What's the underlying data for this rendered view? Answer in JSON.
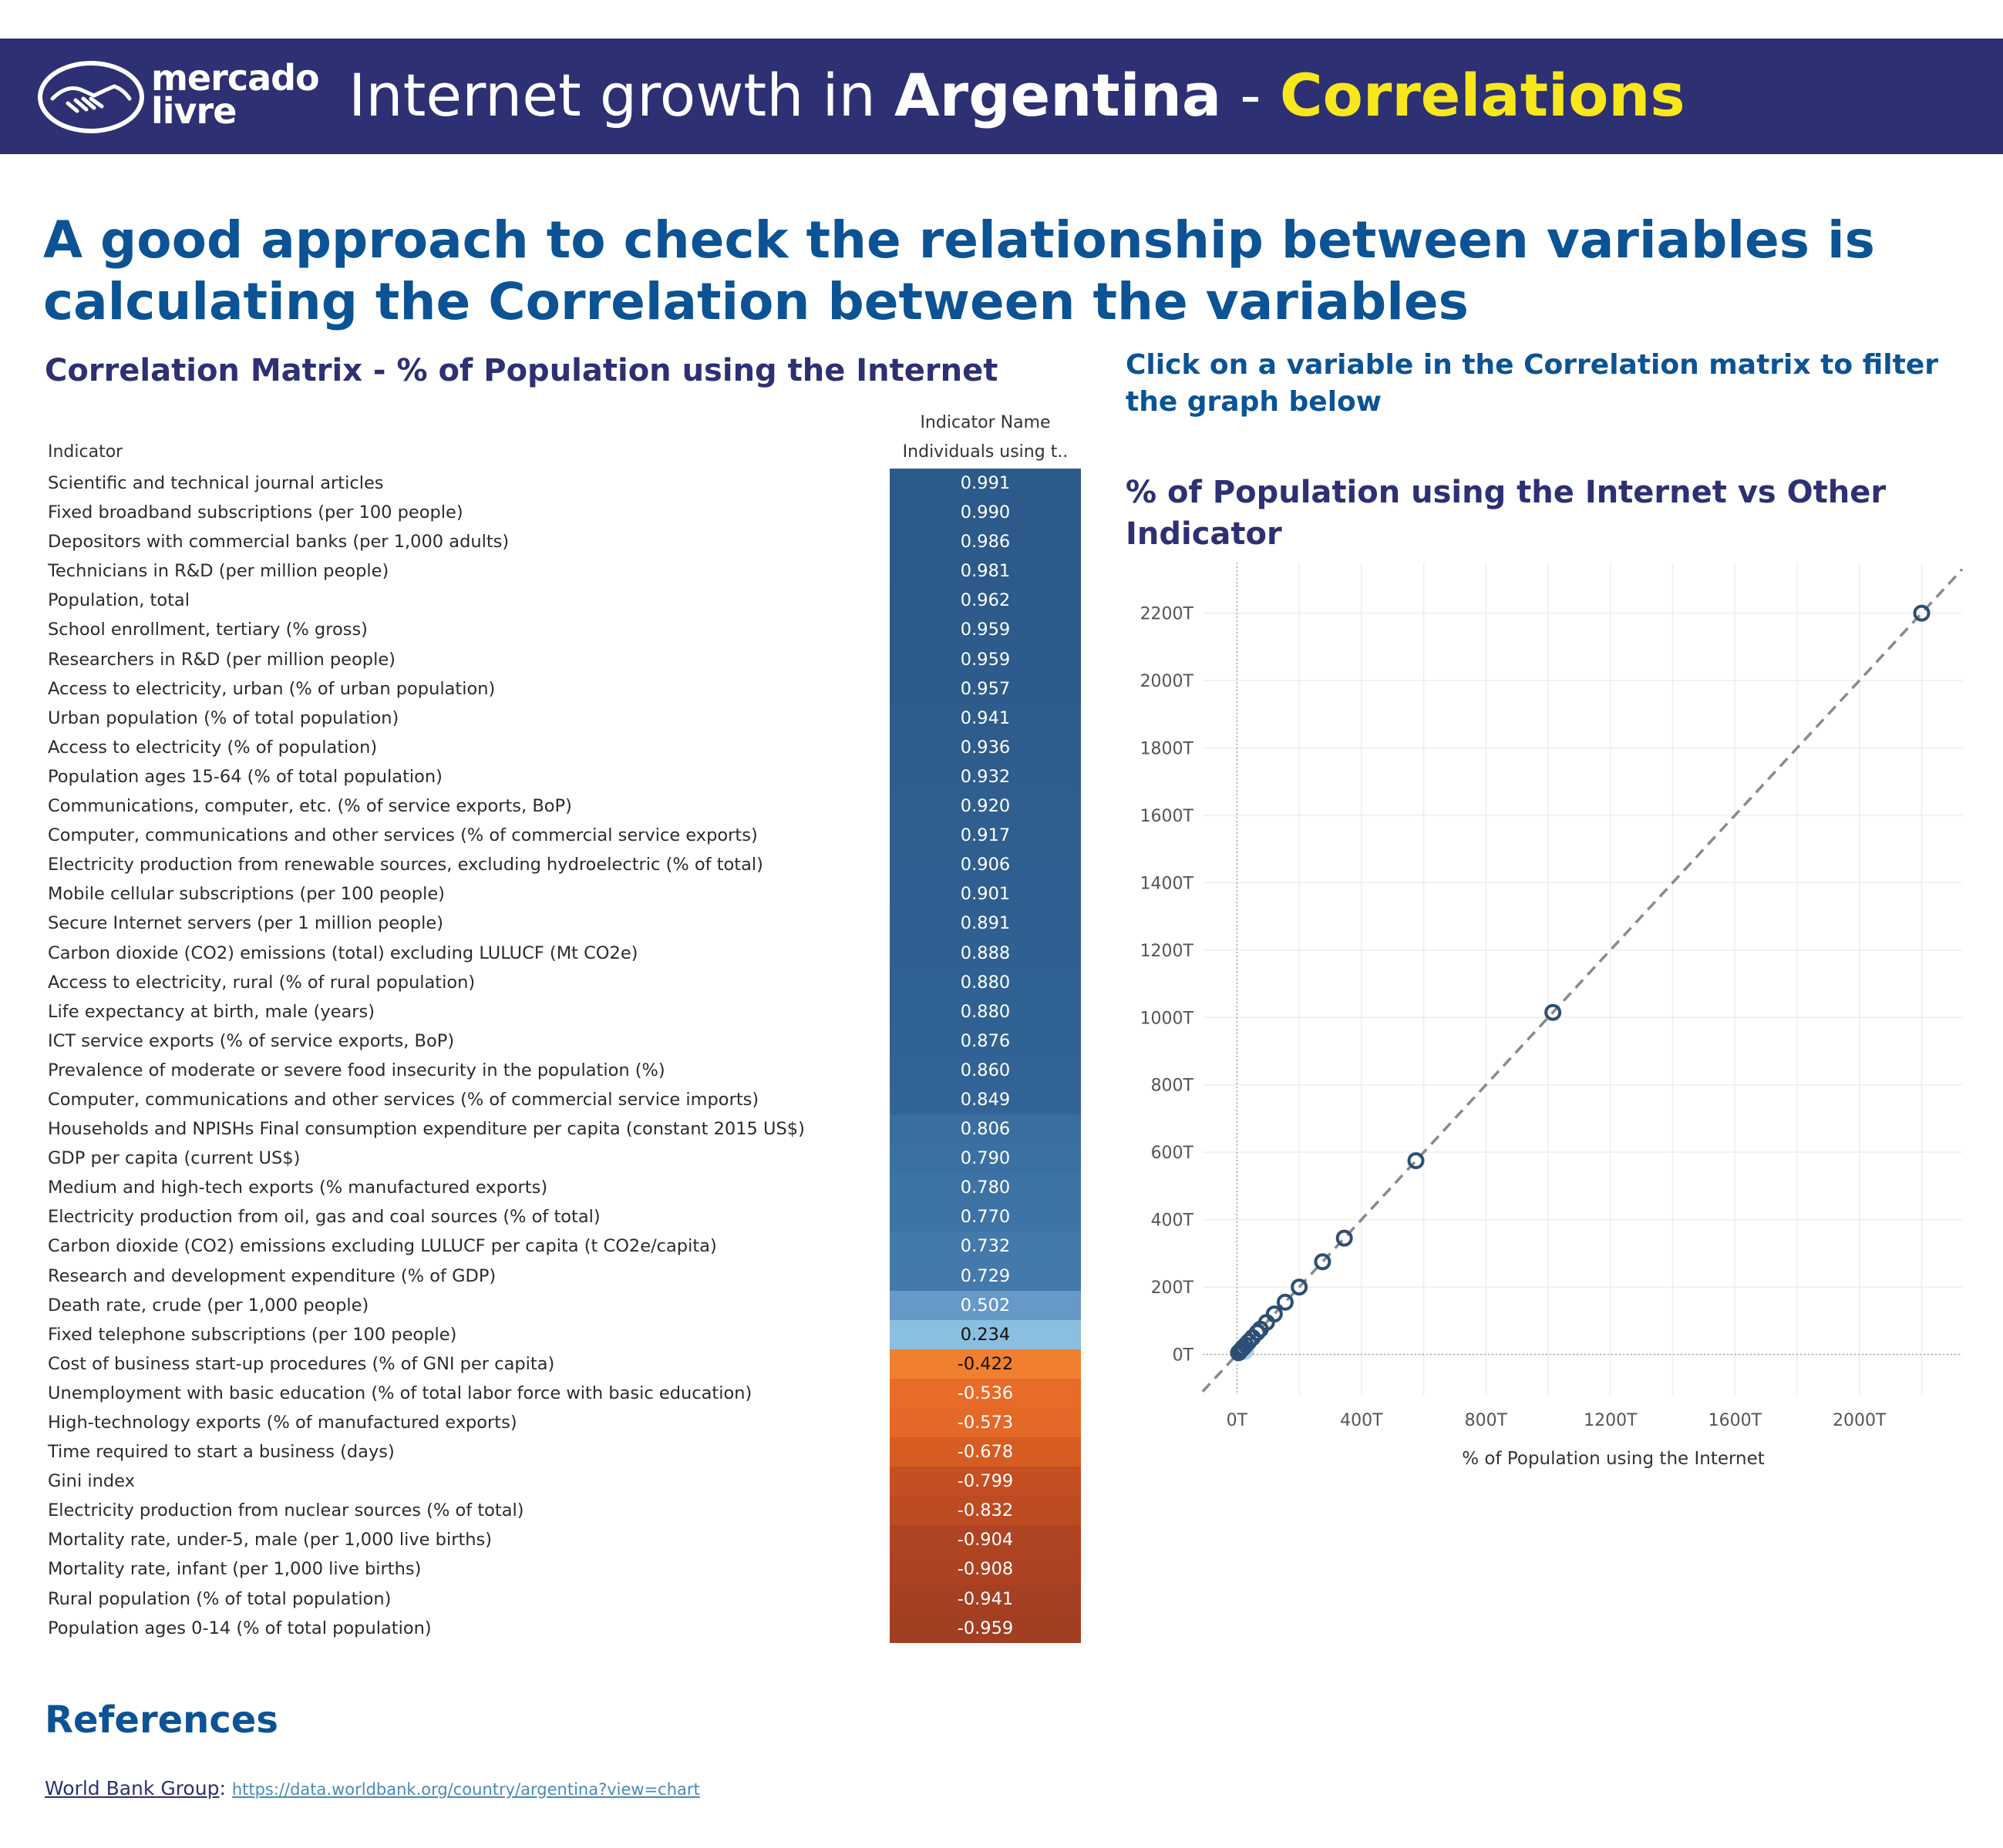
{
  "header": {
    "logo_line1": "mercado",
    "logo_line2": "livre",
    "title_prefix": "Internet growth in ",
    "title_country": "Argentina",
    "title_sep": " - ",
    "title_suffix": "Correlations"
  },
  "headline": "A good approach to check the relationship between variables is calculating the Correlation between the variables",
  "matrix": {
    "title": "Correlation Matrix - % of Population using the Internet",
    "column_header_top": "Indicator Name",
    "column_header": "Individuals using t..",
    "row_header": "Indicator",
    "rows": [
      {
        "label": "Scientific and technical journal articles",
        "value": "0.991",
        "color": "#2c5a8a"
      },
      {
        "label": "Fixed broadband subscriptions (per 100 people)",
        "value": "0.990",
        "color": "#2c5a8a"
      },
      {
        "label": "Depositors with commercial banks (per 1,000 adults)",
        "value": "0.986",
        "color": "#2c5a8a"
      },
      {
        "label": "Technicians in R&D (per million people)",
        "value": "0.981",
        "color": "#2c5a8a"
      },
      {
        "label": "Population, total",
        "value": "0.962",
        "color": "#2d5b8b"
      },
      {
        "label": "School enrollment, tertiary (% gross)",
        "value": "0.959",
        "color": "#2d5b8b"
      },
      {
        "label": "Researchers in R&D (per million people)",
        "value": "0.959",
        "color": "#2d5b8b"
      },
      {
        "label": "Access to electricity, urban (% of urban population)",
        "value": "0.957",
        "color": "#2d5b8b"
      },
      {
        "label": "Urban population (% of total population)",
        "value": "0.941",
        "color": "#2e5c8d"
      },
      {
        "label": "Access to electricity (% of population)",
        "value": "0.936",
        "color": "#2e5c8d"
      },
      {
        "label": "Population ages 15-64 (% of total population)",
        "value": "0.932",
        "color": "#2e5d8e"
      },
      {
        "label": "Communications, computer, etc. (% of service exports, BoP)",
        "value": "0.920",
        "color": "#2f5e8f"
      },
      {
        "label": "Computer, communications and other services (% of commercial service exports)",
        "value": "0.917",
        "color": "#2f5e8f"
      },
      {
        "label": "Electricity production from renewable sources, excluding hydroelectric (% of total)",
        "value": "0.906",
        "color": "#2f5f90"
      },
      {
        "label": "Mobile cellular subscriptions (per 100 people)",
        "value": "0.901",
        "color": "#2f5f90"
      },
      {
        "label": "Secure Internet servers (per 1 million people)",
        "value": "0.891",
        "color": "#306091"
      },
      {
        "label": "Carbon dioxide (CO2) emissions (total) excluding LULUCF (Mt CO2e)",
        "value": "0.888",
        "color": "#306092"
      },
      {
        "label": "Access to electricity, rural (% of rural population)",
        "value": "0.880",
        "color": "#306193"
      },
      {
        "label": "Life expectancy at birth, male (years)",
        "value": "0.880",
        "color": "#306193"
      },
      {
        "label": "ICT service exports (% of service exports, BoP)",
        "value": "0.876",
        "color": "#316294"
      },
      {
        "label": "Prevalence of moderate or severe food insecurity in the population (%)",
        "value": "0.860",
        "color": "#326396"
      },
      {
        "label": "Computer, communications and other services (% of commercial service imports)",
        "value": "0.849",
        "color": "#326497"
      },
      {
        "label": "Households and NPISHs Final consumption expenditure per capita (constant 2015 US$)",
        "value": "0.806",
        "color": "#3a6ea1"
      },
      {
        "label": "GDP per capita (current US$)",
        "value": "0.790",
        "color": "#3b70a3"
      },
      {
        "label": "Medium and high-tech exports (% manufactured exports)",
        "value": "0.780",
        "color": "#3d72a5"
      },
      {
        "label": "Electricity production from oil, gas and coal sources (% of total)",
        "value": "0.770",
        "color": "#3e73a6"
      },
      {
        "label": "Carbon dioxide (CO2) emissions excluding LULUCF per capita (t CO2e/capita)",
        "value": "0.732",
        "color": "#4479ab"
      },
      {
        "label": "Research and development expenditure (% of GDP)",
        "value": "0.729",
        "color": "#4479ab"
      },
      {
        "label": "Death rate, crude (per 1,000 people)",
        "value": "0.502",
        "color": "#6698c8"
      },
      {
        "label": "Fixed telephone subscriptions (per 100 people)",
        "value": "0.234",
        "color": "#8bbfe0"
      },
      {
        "label": "Cost of business start-up procedures (% of GNI per capita)",
        "value": "-0.422",
        "color": "#f08030"
      },
      {
        "label": "Unemployment with basic education (% of total labor force with basic education)",
        "value": "-0.536",
        "color": "#e96b28"
      },
      {
        "label": "High-technology exports (% of manufactured exports)",
        "value": "-0.573",
        "color": "#e46826"
      },
      {
        "label": "Time required to start a business (days)",
        "value": "-0.678",
        "color": "#d65c22"
      },
      {
        "label": "Gini index",
        "value": "-0.799",
        "color": "#c44f22"
      },
      {
        "label": "Electricity production from nuclear sources (% of total)",
        "value": "-0.832",
        "color": "#bd4b22"
      },
      {
        "label": "Mortality rate, under-5, male (per 1,000 live births)",
        "value": "-0.904",
        "color": "#ae4422"
      },
      {
        "label": "Mortality rate, infant (per 1,000 live births)",
        "value": "-0.908",
        "color": "#ad4322"
      },
      {
        "label": "Rural population (% of total population)",
        "value": "-0.941",
        "color": "#a64022"
      },
      {
        "label": "Population ages 0-14 (% of total population)",
        "value": "-0.959",
        "color": "#a23f22"
      }
    ]
  },
  "filter_hint": "Click on a variable in the Correlation matrix to filter the graph below",
  "chart_heading": {
    "part1": "% of Population using the Internet",
    "part2": " vs ",
    "part3": "Other Indicator"
  },
  "chart_data": {
    "type": "scatter",
    "xlabel": "% of Population using the Internet",
    "ylabel": "",
    "xlim": [
      -110,
      2330
    ],
    "ylim": [
      -120,
      2350
    ],
    "x_ticks": [
      0,
      400,
      800,
      1200,
      1600,
      2000
    ],
    "x_tick_labels": [
      "0T",
      "400T",
      "800T",
      "1200T",
      "1600T",
      "2000T"
    ],
    "y_ticks": [
      0,
      200,
      400,
      600,
      800,
      1000,
      1200,
      1400,
      1600,
      1800,
      2000,
      2200
    ],
    "y_tick_labels": [
      "0T",
      "200T",
      "400T",
      "600T",
      "800T",
      "1000T",
      "1200T",
      "1400T",
      "1600T",
      "1800T",
      "2000T",
      "2200T"
    ],
    "grid": true,
    "reference_line": "y = x (dashed)",
    "points": [
      {
        "x": 5,
        "y": 5
      },
      {
        "x": 10,
        "y": 10
      },
      {
        "x": 15,
        "y": 15
      },
      {
        "x": 20,
        "y": 20
      },
      {
        "x": 28,
        "y": 28
      },
      {
        "x": 38,
        "y": 38
      },
      {
        "x": 50,
        "y": 50
      },
      {
        "x": 65,
        "y": 65
      },
      {
        "x": 75,
        "y": 75
      },
      {
        "x": 95,
        "y": 95
      },
      {
        "x": 120,
        "y": 120
      },
      {
        "x": 155,
        "y": 155
      },
      {
        "x": 200,
        "y": 200
      },
      {
        "x": 275,
        "y": 275
      },
      {
        "x": 345,
        "y": 345
      },
      {
        "x": 575,
        "y": 575
      },
      {
        "x": 1015,
        "y": 1015
      },
      {
        "x": 2200,
        "y": 2200
      }
    ],
    "highlighted_point": {
      "x": 22,
      "y": 14
    }
  },
  "references": {
    "title": "References",
    "source": "World Bank Group",
    "separator": ": ",
    "link": "https://data.worldbank.org/country/argentina?view=chart"
  }
}
